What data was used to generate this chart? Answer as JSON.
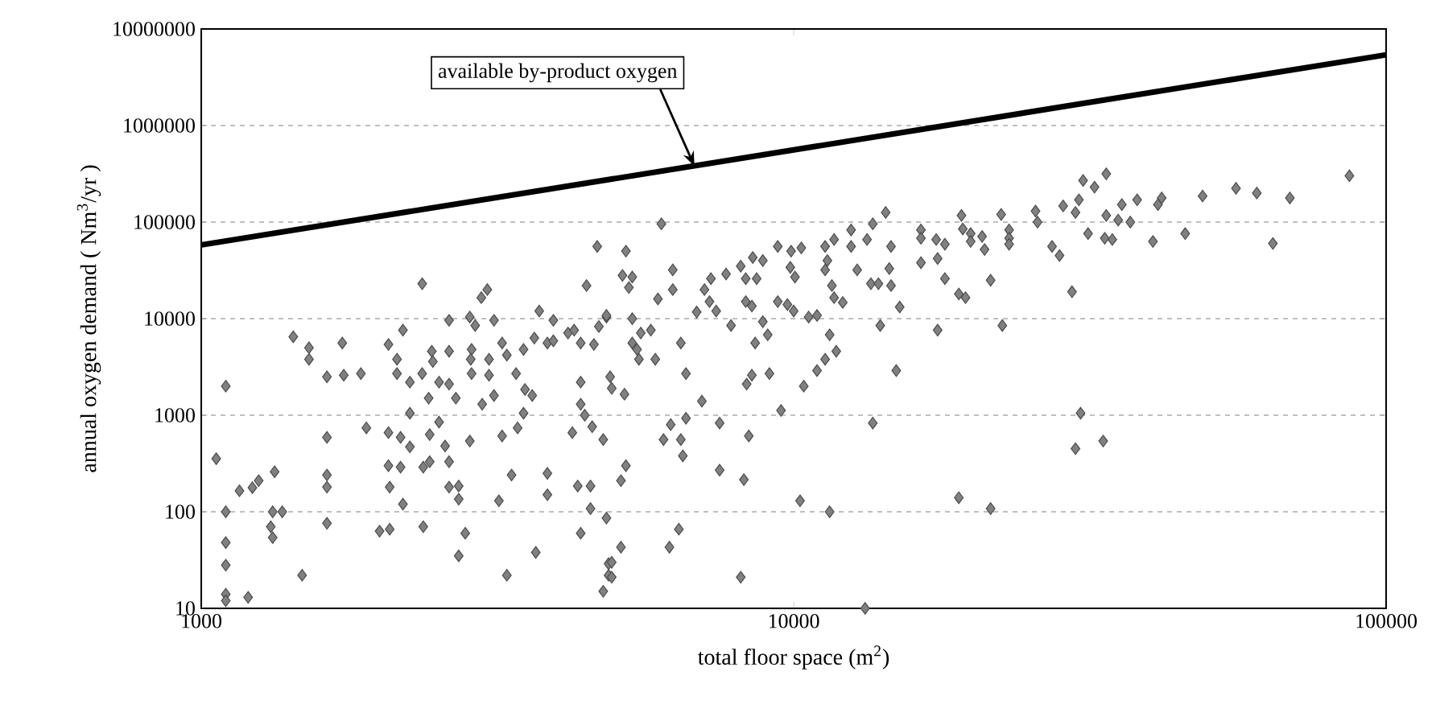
{
  "chart_data": {
    "type": "scatter",
    "xlabel": "total floor space (m$^{2}$)",
    "ylabel": "annual oxygen demand ( Nm$^{3}$/yr )",
    "log": "xy",
    "grid": "y",
    "marker": "diamond",
    "xlim": [
      1000,
      100000
    ],
    "xticks": [
      1000,
      10000,
      100000
    ],
    "ylim": [
      10,
      10000000
    ],
    "yticks": [
      10,
      100,
      1000,
      10000,
      100000,
      1000000,
      10000000
    ],
    "series": [
      {
        "color": "#808080",
        "x": [
          1100,
          1060,
          1100,
          1100,
          1100,
          1100,
          1100,
          1200,
          1160,
          1220,
          1250,
          1330,
          1320,
          1310,
          1320,
          1370,
          1430,
          1520,
          1520,
          1480,
          1630,
          1730,
          1740,
          1860,
          1630,
          1630,
          1630,
          1630,
          1900,
          2360,
          2070,
          2070,
          2070,
          2080,
          2000,
          2080,
          2190,
          2140,
          2140,
          2170,
          2170,
          2190,
          2250,
          2250,
          2250,
          2360,
          2370,
          2370,
          2430,
          2430,
          2450,
          2460,
          2420,
          2520,
          2520,
          2580,
          2620,
          2620,
          2620,
          2620,
          2620,
          2690,
          2720,
          2720,
          2720,
          2790,
          2840,
          2860,
          2850,
          2860,
          2840,
          2900,
          2970,
          3040,
          2980,
          3060,
          3060,
          3120,
          3120,
          3220,
          3220,
          3180,
          3280,
          3280,
          3340,
          3400,
          3420,
          3500,
          3520,
          3500,
          3620,
          3650,
          3720,
          3840,
          3840,
          3840,
          3670,
          3930,
          3930,
          4160,
          4260,
          4370,
          4370,
          4370,
          4440,
          4230,
          4320,
          4540,
          4540,
          4370,
          4470,
          4660,
          4600,
          4570,
          4770,
          4690,
          4830,
          4830,
          4870,
          4870,
          4770,
          5980,
          5210,
          5140,
          5340,
          5270,
          6250,
          6250,
          5900,
          4830,
          5340,
          5520,
          5740,
          5340,
          5440,
          5480,
          5840,
          6450,
          6580,
          4900,
          4930,
          5180,
          5210,
          5110,
          5110,
          4930,
          4930,
          6170,
          6400,
          6030,
          6200,
          6450,
          6500,
          6580,
          7000,
          6860,
          7070,
          7250,
          7210,
          7400,
          7690,
          7840,
          7500,
          7500,
          8140,
          8300,
          8530,
          8870,
          8660,
          8300,
          8500,
          8870,
          9040,
          8610,
          8500,
          8330,
          9100,
          8400,
          8240,
          8140,
          9520,
          9400,
          9900,
          10300,
          9870,
          10050,
          9400,
          9760,
          10000,
          10600,
          10950,
          10400,
          10950,
          11300,
          11800,
          11500,
          10250,
          11500,
          11300,
          11700,
          11400,
          11300,
          11600,
          12100,
          11700,
          12500,
          12500,
          13200,
          12800,
          13300,
          13600,
          14300,
          13500,
          14600,
          13900,
          14500,
          14600,
          15100,
          14000,
          14900,
          13600,
          16400,
          16400,
          16400,
          17400,
          17500,
          18000,
          18000,
          17500,
          19000,
          19500,
          19200,
          19300,
          19900,
          19900,
          20800,
          21000,
          21500,
          22400,
          23100,
          22500,
          19000,
          21500,
          23100,
          23100,
          25600,
          25800,
          27300,
          28100,
          28500,
          29500,
          29900,
          30300,
          30800,
          32200,
          33700,
          31400,
          33700,
          33500,
          34500,
          35800,
          35300,
          37000,
          38000,
          40400,
          41200,
          41800,
          45800,
          49000,
          55800,
          60500,
          64400,
          68800,
          86700,
          30500,
          29900,
          33300
        ],
        "values": [
          2000,
          355,
          100,
          48,
          28,
          14,
          12,
          13,
          165,
          178,
          210,
          260,
          100,
          70,
          54,
          100,
          6500,
          5000,
          3800,
          22,
          2500,
          5600,
          2600,
          2700,
          590,
          240,
          180,
          76,
          740,
          23000,
          5400,
          660,
          300,
          180,
          63,
          66,
          7600,
          3800,
          2700,
          590,
          290,
          120,
          2200,
          1050,
          470,
          2700,
          290,
          70,
          630,
          330,
          4600,
          3600,
          1500,
          2200,
          850,
          480,
          9600,
          4600,
          2100,
          330,
          180,
          1500,
          185,
          135,
          35,
          60,
          10400,
          4800,
          3800,
          2700,
          540,
          8500,
          16500,
          20000,
          1300,
          3800,
          2600,
          9600,
          1600,
          5600,
          610,
          130,
          22,
          4200,
          240,
          2700,
          740,
          4800,
          1850,
          1050,
          1600,
          6300,
          12000,
          5600,
          250,
          150,
          38,
          9600,
          5900,
          7100,
          7600,
          5600,
          2200,
          1300,
          1000,
          660,
          185,
          185,
          108,
          60,
          22000,
          56000,
          5400,
          760,
          560,
          8300,
          10400,
          86,
          29,
          22,
          15,
          96000,
          50000,
          28000,
          27000,
          21000,
          32000,
          20000,
          16000,
          10800,
          10000,
          7100,
          7600,
          5600,
          4800,
          3800,
          3800,
          5600,
          2700,
          2500,
          1900,
          1650,
          300,
          210,
          43,
          30,
          21,
          43,
          66,
          560,
          800,
          560,
          380,
          930,
          1400,
          11700,
          20000,
          26000,
          15000,
          12000,
          29000,
          8500,
          830,
          270,
          35000,
          26000,
          43000,
          40000,
          26000,
          15000,
          13500,
          9300,
          6800,
          5600,
          2600,
          2100,
          2700,
          610,
          215,
          21,
          1120,
          56000,
          50000,
          54000,
          34000,
          27000,
          15000,
          14000,
          12000,
          10400,
          10800,
          2000,
          2900,
          3800,
          4600,
          6800,
          130,
          100,
          56000,
          66000,
          40000,
          32000,
          22000,
          14700,
          16500,
          56000,
          83000,
          10,
          32000,
          66000,
          96000,
          126000,
          23000,
          56000,
          23000,
          33000,
          22000,
          13200,
          8500,
          2900,
          830,
          83000,
          68000,
          38000,
          66000,
          42000,
          59000,
          26000,
          7600,
          18000,
          16500,
          117000,
          85000,
          76000,
          63000,
          71000,
          52000,
          25000,
          120000,
          83000,
          8500,
          140,
          108,
          68000,
          59000,
          130000,
          100000,
          56000,
          45000,
          147000,
          19000,
          126000,
          170000,
          270000,
          230000,
          316000,
          76000,
          117000,
          68000,
          66000,
          152000,
          105000,
          100000,
          170000,
          63000,
          152000,
          178000,
          76000,
          186000,
          224000,
          200000,
          60000,
          178000,
          302000,
          1050,
          450,
          540
        ]
      },
      {
        "type": "line",
        "color": "#000000",
        "marker": "none",
        "x": [
          1000,
          100000
        ],
        "values": [
          58000,
          5400000
        ]
      }
    ],
    "annotations": [
      {
        "text": "available by-product oxygen",
        "x": 6800,
        "y": 380000
      }
    ]
  }
}
